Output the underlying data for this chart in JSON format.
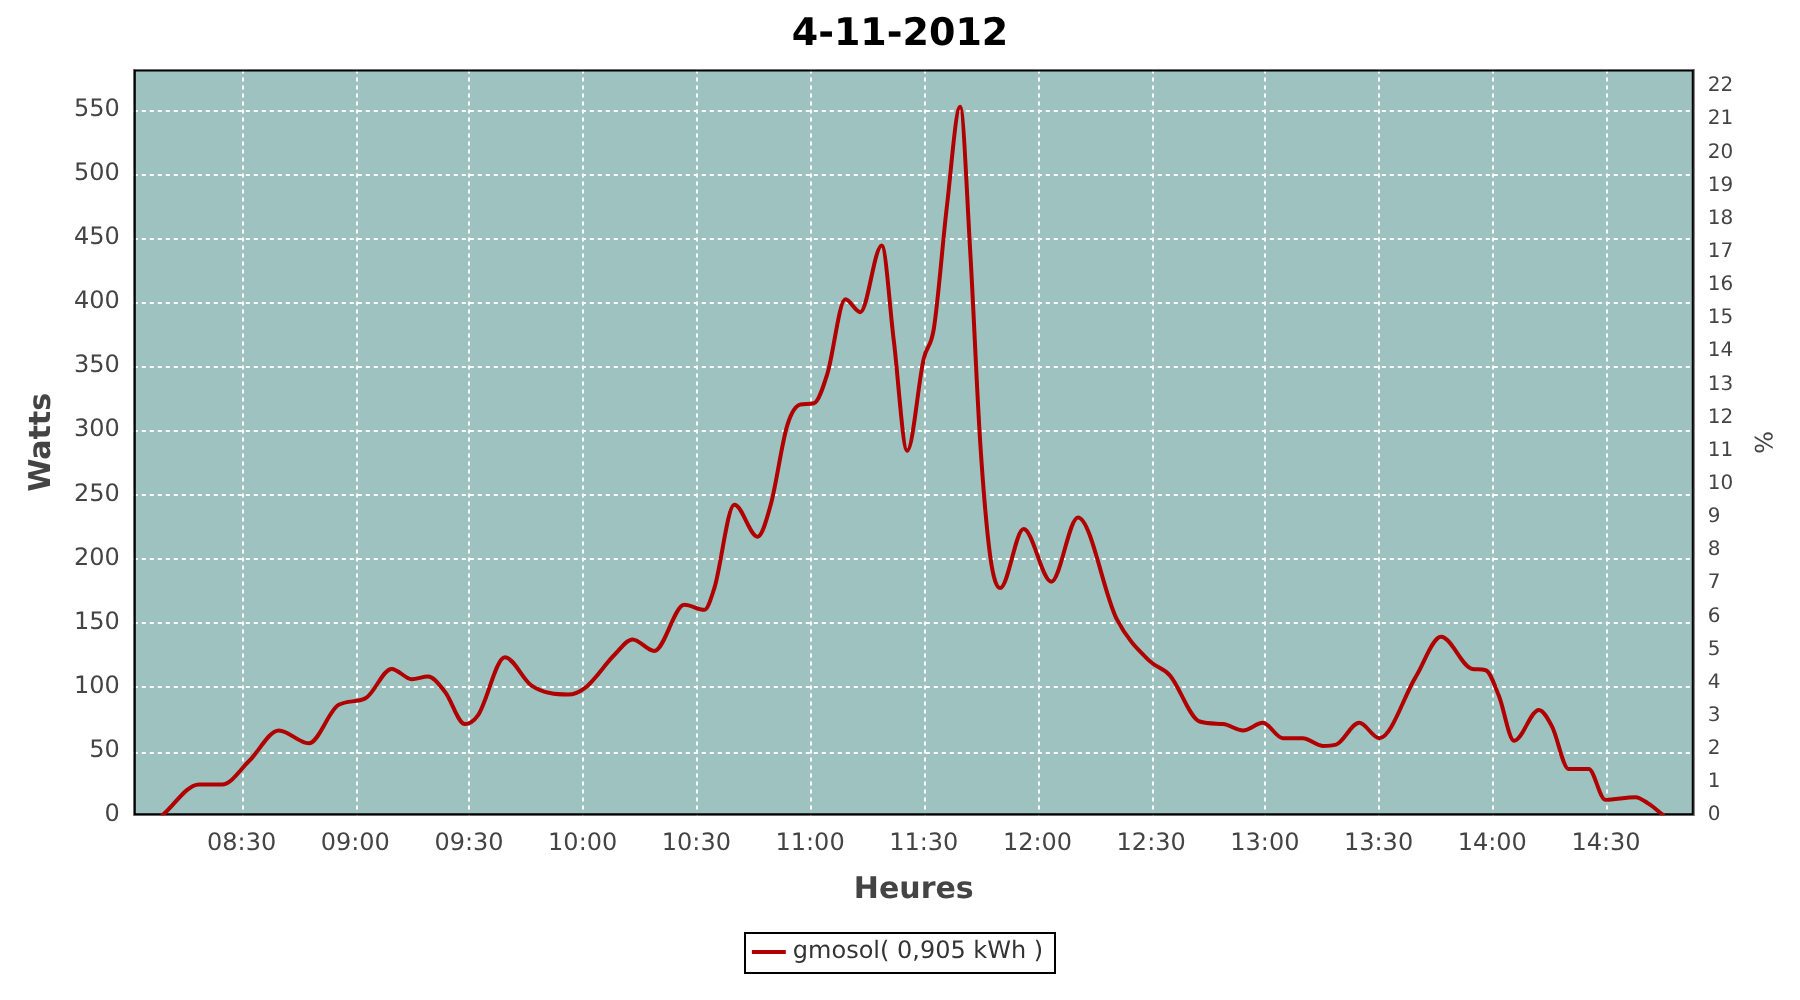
{
  "chart_data": {
    "type": "line",
    "title": "4-11-2012",
    "xlabel": "Heures",
    "ylabel": "Watts",
    "y2label": "%",
    "series": [
      {
        "name": "gmosol( 0,905 kWh )",
        "color": "#b00000",
        "x": [
          8.152,
          8.313,
          8.415,
          8.532,
          8.664,
          8.795,
          8.927,
          9.044,
          9.16,
          9.248,
          9.32,
          9.395,
          9.482,
          9.54,
          9.658,
          9.775,
          9.936,
          10.009,
          10.14,
          10.219,
          10.315,
          10.447,
          10.535,
          10.579,
          10.667,
          10.769,
          10.827,
          10.9,
          10.958,
          11.017,
          11.076,
          11.155,
          11.221,
          11.315,
          11.368,
          11.427,
          11.5,
          11.544,
          11.602,
          11.66,
          11.704,
          11.748,
          11.792,
          11.836,
          11.939,
          12.061,
          12.178,
          12.348,
          12.494,
          12.582,
          12.713,
          12.816,
          12.904,
          12.991,
          13.079,
          13.167,
          13.254,
          13.313,
          13.415,
          13.503,
          13.664,
          13.775,
          13.912,
          13.971,
          14.029,
          14.096,
          14.205,
          14.263,
          14.336,
          14.424,
          14.497,
          14.629,
          14.687,
          14.752
        ],
        "values": [
          0,
          24,
          24,
          42,
          66,
          56,
          86,
          91,
          114,
          106,
          108,
          96,
          71,
          78,
          123,
          101,
          94,
          99,
          125,
          137,
          128,
          164,
          160,
          177,
          242,
          217,
          242,
          304,
          320,
          321,
          344,
          402,
          392,
          444,
          370,
          284,
          356,
          379,
          475,
          552,
          440,
          291,
          202,
          177,
          223,
          182,
          232,
          153,
          120,
          109,
          73,
          71,
          66,
          72,
          60,
          60,
          54,
          55,
          72,
          60,
          108,
          139,
          114,
          113,
          93,
          58,
          82,
          69,
          36,
          36,
          12,
          14,
          9,
          0
        ]
      }
    ],
    "xlim": [
      8.026,
      14.886
    ],
    "xticks": [
      {
        "value": 8.5,
        "label": "08:30"
      },
      {
        "value": 9,
        "label": "09:00"
      },
      {
        "value": 9.5,
        "label": "09:30"
      },
      {
        "value": 10,
        "label": "10:00"
      },
      {
        "value": 10.5,
        "label": "10:30"
      },
      {
        "value": 11,
        "label": "11:00"
      },
      {
        "value": 11.5,
        "label": "11:30"
      },
      {
        "value": 12,
        "label": "12:00"
      },
      {
        "value": 12.5,
        "label": "12:30"
      },
      {
        "value": 13,
        "label": "13:00"
      },
      {
        "value": 13.5,
        "label": "13:30"
      },
      {
        "value": 14,
        "label": "14:00"
      },
      {
        "value": 14.5,
        "label": "14:30"
      }
    ],
    "ylim": [
      0,
      581
    ],
    "yticks": [
      0,
      50,
      100,
      150,
      200,
      250,
      300,
      350,
      400,
      450,
      500,
      550
    ],
    "y2lim": [
      0,
      22.5
    ],
    "y2ticks": [
      0,
      1,
      2,
      3,
      4,
      5,
      6,
      7,
      8,
      9,
      10,
      11,
      12,
      13,
      14,
      15,
      16,
      17,
      18,
      19,
      20,
      21,
      22
    ],
    "grid": true,
    "legend": "bottom",
    "marker": "none",
    "line_style": "solid"
  }
}
